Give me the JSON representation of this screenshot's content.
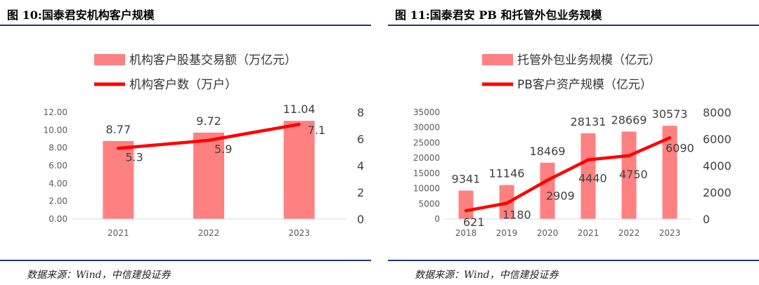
{
  "charts": [
    {
      "title": "图 10:国泰君安机构客户规模",
      "source": "数据来源：Wind，中信建投证券",
      "chart_data": {
        "type": "bar",
        "categories": [
          "2021",
          "2022",
          "2023"
        ],
        "series": [
          {
            "name": "机构客户股基交易额（万亿元）",
            "type": "bar",
            "axis": "left",
            "values": [
              8.77,
              9.72,
              11.04
            ],
            "color": "#ff8080"
          },
          {
            "name": "机构客户数（万户）",
            "type": "line",
            "axis": "right",
            "values": [
              5.3,
              5.9,
              7.1
            ],
            "color": "#ff0000"
          }
        ],
        "y_left": {
          "range": [
            0,
            12
          ],
          "ticks": [
            "0.00",
            "2.00",
            "4.00",
            "6.00",
            "8.00",
            "10.00",
            "12.00"
          ]
        },
        "y_right": {
          "range": [
            0,
            8
          ],
          "ticks": [
            "0",
            "2",
            "4",
            "6",
            "8"
          ]
        },
        "bar_labels": [
          "8.77",
          "9.72",
          "11.04"
        ],
        "line_labels": [
          "5.3",
          "5.9",
          "7.1"
        ],
        "grid": false,
        "legend": "top"
      }
    },
    {
      "title": "图 11:国泰君安 PB 和托管外包业务规模",
      "source": "数据来源：Wind，中信建投证券",
      "chart_data": {
        "type": "bar",
        "categories": [
          "2018",
          "2019",
          "2020",
          "2021",
          "2022",
          "2023"
        ],
        "series": [
          {
            "name": "托管外包业务规模（亿元）",
            "type": "bar",
            "axis": "left",
            "values": [
              9341,
              11146,
              18469,
              28131,
              28669,
              30573
            ],
            "color": "#ff8080"
          },
          {
            "name": "PB客户资产规模（亿元）",
            "type": "line",
            "axis": "right",
            "values": [
              621,
              1180,
              2909,
              4440,
              4750,
              6090
            ],
            "color": "#ff0000"
          }
        ],
        "y_left": {
          "range": [
            0,
            35000
          ],
          "ticks": [
            "0",
            "5000",
            "10000",
            "15000",
            "20000",
            "25000",
            "30000",
            "35000"
          ]
        },
        "y_right": {
          "range": [
            0,
            8000
          ],
          "ticks": [
            "0",
            "2000",
            "4000",
            "6000",
            "8000"
          ]
        },
        "bar_labels": [
          "9341",
          "11146",
          "18469",
          "28131",
          "28669",
          "30573"
        ],
        "line_labels": [
          "621",
          "1180",
          "2909",
          "4440",
          "4750",
          "6090"
        ],
        "grid": false,
        "legend": "top"
      }
    }
  ]
}
